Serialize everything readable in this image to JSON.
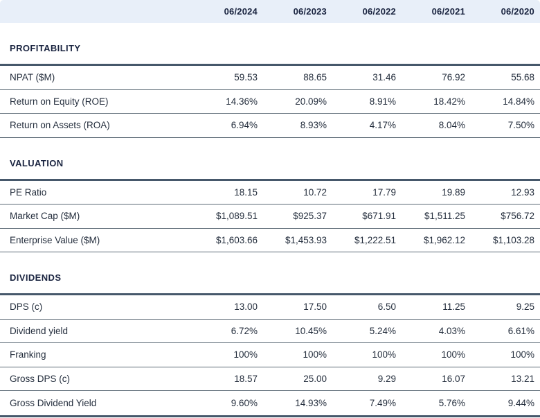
{
  "chart_data": {
    "type": "table",
    "columns": [
      "06/2024",
      "06/2023",
      "06/2022",
      "06/2021",
      "06/2020"
    ],
    "sections": [
      {
        "title": "PROFITABILITY",
        "rows": [
          {
            "label": "NPAT ($M)",
            "values": [
              "59.53",
              "88.65",
              "31.46",
              "76.92",
              "55.68"
            ]
          },
          {
            "label": "Return on Equity (ROE)",
            "values": [
              "14.36%",
              "20.09%",
              "8.91%",
              "18.42%",
              "14.84%"
            ]
          },
          {
            "label": "Return on Assets (ROA)",
            "values": [
              "6.94%",
              "8.93%",
              "4.17%",
              "8.04%",
              "7.50%"
            ]
          }
        ]
      },
      {
        "title": "VALUATION",
        "rows": [
          {
            "label": "PE Ratio",
            "values": [
              "18.15",
              "10.72",
              "17.79",
              "19.89",
              "12.93"
            ]
          },
          {
            "label": "Market Cap ($M)",
            "values": [
              "$1,089.51",
              "$925.37",
              "$671.91",
              "$1,511.25",
              "$756.72"
            ]
          },
          {
            "label": "Enterprise Value ($M)",
            "values": [
              "$1,603.66",
              "$1,453.93",
              "$1,222.51",
              "$1,962.12",
              "$1,103.28"
            ]
          }
        ]
      },
      {
        "title": "DIVIDENDS",
        "rows": [
          {
            "label": "DPS (c)",
            "values": [
              "13.00",
              "17.50",
              "6.50",
              "11.25",
              "9.25"
            ]
          },
          {
            "label": "Dividend yield",
            "values": [
              "6.72%",
              "10.45%",
              "5.24%",
              "4.03%",
              "6.61%"
            ]
          },
          {
            "label": "Franking",
            "values": [
              "100%",
              "100%",
              "100%",
              "100%",
              "100%"
            ]
          },
          {
            "label": "Gross DPS (c)",
            "values": [
              "18.57",
              "25.00",
              "9.29",
              "16.07",
              "13.21"
            ]
          },
          {
            "label": "Gross Dividend Yield",
            "values": [
              "9.60%",
              "14.93%",
              "7.49%",
              "5.76%",
              "9.44%"
            ]
          }
        ]
      }
    ]
  },
  "colors": {
    "header_bg": "#e8eff9",
    "header_text": "#1a2440",
    "row_text": "#242e3d",
    "thin_divider": "#5a6874",
    "thick_divider": "#46586b"
  }
}
